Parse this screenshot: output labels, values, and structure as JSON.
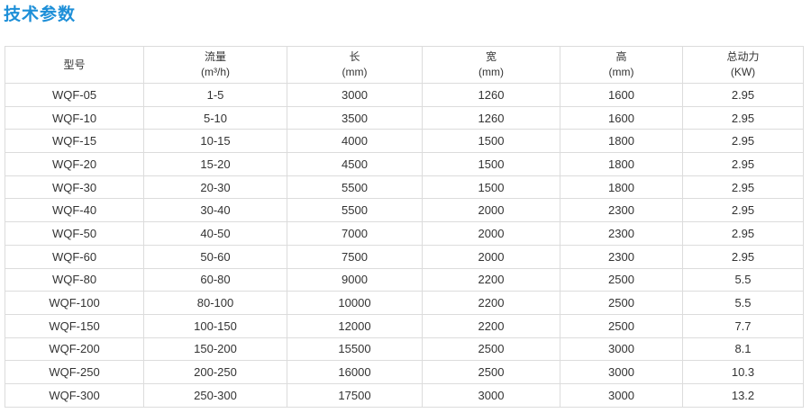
{
  "title": "技术参数",
  "headers": [
    {
      "name": "型号",
      "unit": ""
    },
    {
      "name": "流量",
      "unit": "(m³/h)"
    },
    {
      "name": "长",
      "unit": "(mm)"
    },
    {
      "name": "宽",
      "unit": "(mm)"
    },
    {
      "name": "高",
      "unit": "(mm)"
    },
    {
      "name": "总动力",
      "unit": "(KW)"
    }
  ],
  "rows": [
    [
      "WQF-05",
      "1-5",
      "3000",
      "1260",
      "1600",
      "2.95"
    ],
    [
      "WQF-10",
      "5-10",
      "3500",
      "1260",
      "1600",
      "2.95"
    ],
    [
      "WQF-15",
      "10-15",
      "4000",
      "1500",
      "1800",
      "2.95"
    ],
    [
      "WQF-20",
      "15-20",
      "4500",
      "1500",
      "1800",
      "2.95"
    ],
    [
      "WQF-30",
      "20-30",
      "5500",
      "1500",
      "1800",
      "2.95"
    ],
    [
      "WQF-40",
      "30-40",
      "5500",
      "2000",
      "2300",
      "2.95"
    ],
    [
      "WQF-50",
      "40-50",
      "7000",
      "2000",
      "2300",
      "2.95"
    ],
    [
      "WQF-60",
      "50-60",
      "7500",
      "2000",
      "2300",
      "2.95"
    ],
    [
      "WQF-80",
      "60-80",
      "9000",
      "2200",
      "2500",
      "5.5"
    ],
    [
      "WQF-100",
      "80-100",
      "10000",
      "2200",
      "2500",
      "5.5"
    ],
    [
      "WQF-150",
      "100-150",
      "12000",
      "2200",
      "2500",
      "7.7"
    ],
    [
      "WQF-200",
      "150-200",
      "15500",
      "2500",
      "3000",
      "8.1"
    ],
    [
      "WQF-250",
      "200-250",
      "16000",
      "2500",
      "3000",
      "10.3"
    ],
    [
      "WQF-300",
      "250-300",
      "17500",
      "3000",
      "3000",
      "13.2"
    ]
  ]
}
